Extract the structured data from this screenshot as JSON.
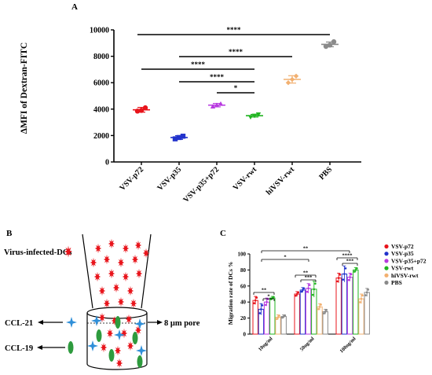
{
  "panels": {
    "a_label": "A",
    "b_label": "B",
    "c_label": "C"
  },
  "schematic": {
    "infected_label": "Virus-infected-DCs",
    "ccl21_label": "CCL-21",
    "ccl19_label": "CCL-19",
    "pore_label": "8 μm pore",
    "colors": {
      "dc": "#e8141b",
      "ccl21": "#2f8fd8",
      "ccl19": "#2e9b3e"
    }
  },
  "chart_data": [
    {
      "panel": "A",
      "type": "scatter",
      "title": "",
      "xlabel": "",
      "ylabel": "ΔMFI of Dextran-FITC",
      "ylim": [
        0,
        10000
      ],
      "yticks": [
        0,
        2000,
        4000,
        6000,
        8000,
        10000
      ],
      "categories": [
        "VSV-p72",
        "VSV-p35",
        "VSV-p35+p72",
        "VSV-rwt",
        "hiVSV-rwt",
        "PBS"
      ],
      "colors": [
        "#e8141b",
        "#2233cc",
        "#b83ae0",
        "#22b522",
        "#f2b070",
        "#8a8a8a"
      ],
      "markers": [
        "circle",
        "square",
        "triangle-up",
        "triangle-down",
        "diamond",
        "circle"
      ],
      "means": [
        3950,
        1850,
        4300,
        3500,
        6250,
        8900
      ],
      "sd": [
        180,
        140,
        130,
        100,
        280,
        180
      ],
      "points": [
        [
          3850,
          4100,
          3900
        ],
        [
          1750,
          1950,
          1850
        ],
        [
          4200,
          4400,
          4300
        ],
        [
          3400,
          3600,
          3500
        ],
        [
          6000,
          6500,
          6250
        ],
        [
          8750,
          9100,
          8850
        ]
      ],
      "significance": [
        {
          "from": "VSV-p72",
          "to": "PBS",
          "label": "****"
        },
        {
          "from": "VSV-p35",
          "to": "hiVSV-rwt",
          "label": "****"
        },
        {
          "from": "VSV-p72",
          "to": "VSV-rwt",
          "label": "****"
        },
        {
          "from": "VSV-p35",
          "to": "VSV-rwt",
          "label": "****"
        },
        {
          "from": "VSV-p35+p72",
          "to": "VSV-rwt",
          "label": "*"
        }
      ]
    },
    {
      "panel": "C",
      "type": "bar",
      "title": "",
      "xlabel": "",
      "ylabel": "Migration rate of DCs %",
      "ylim": [
        0,
        100
      ],
      "yticks": [
        0,
        20,
        40,
        60,
        80,
        100
      ],
      "categories": [
        "10ng/ml",
        "50ng/ml",
        "100ng/ml"
      ],
      "series": [
        {
          "name": "VSV-p72",
          "color": "#e8141b",
          "values": [
            42,
            50,
            70
          ],
          "err": [
            5,
            3,
            6
          ]
        },
        {
          "name": "VSV-p35",
          "color": "#2233cc",
          "values": [
            31,
            55,
            75
          ],
          "err": [
            7,
            3,
            10
          ]
        },
        {
          "name": "VSV-p35+p72",
          "color": "#b83ae0",
          "values": [
            40,
            57,
            71
          ],
          "err": [
            5,
            6,
            5
          ]
        },
        {
          "name": "VSV-rwt",
          "color": "#22b522",
          "values": [
            45,
            56,
            80
          ],
          "err": [
            2,
            10,
            3
          ]
        },
        {
          "name": "hiVSV-rwt",
          "color": "#f2b070",
          "values": [
            21,
            34,
            44
          ],
          "err": [
            3,
            4,
            6
          ]
        },
        {
          "name": "PBS",
          "color": "#8a8a8a",
          "values": [
            22,
            28,
            52
          ],
          "err": [
            2,
            3,
            5
          ]
        }
      ],
      "legend": "right",
      "significance": [
        {
          "group": "10ng/ml",
          "label": "**"
        },
        {
          "group": "10ng/ml",
          "label": "*"
        },
        {
          "group": "50ng/ml",
          "label": "**"
        },
        {
          "group": "50ng/ml",
          "label": "***"
        },
        {
          "group": "100ng/ml",
          "label": "****"
        },
        {
          "group": "100ng/ml",
          "label": "***"
        },
        {
          "group": "10ng/ml vs 50ng/ml",
          "label": "*"
        },
        {
          "group": "10ng/ml vs 100ng/ml",
          "label": "**"
        }
      ]
    }
  ]
}
